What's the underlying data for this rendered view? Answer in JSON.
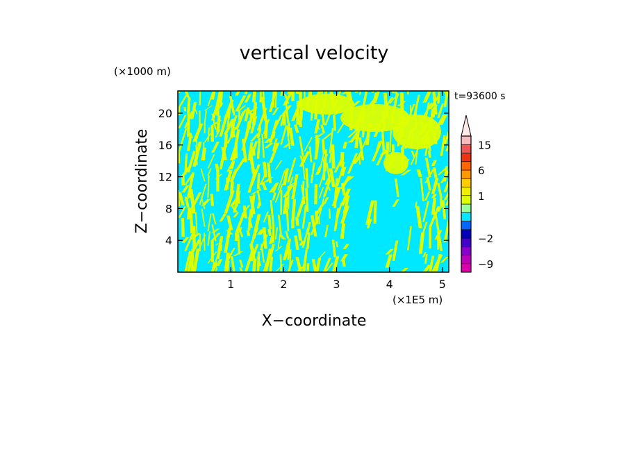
{
  "chart_data": {
    "type": "heatmap",
    "title": "vertical velocity",
    "xlabel": "X−coordinate",
    "ylabel": "Z−coordinate",
    "x_unit": "(×1E5 m)",
    "y_unit": "(×1000 m)",
    "time_label": "t=93600 s",
    "xlim": [
      0,
      5.12
    ],
    "ylim": [
      0,
      22.8
    ],
    "x_ticks": [
      1,
      2,
      3,
      4,
      5
    ],
    "y_ticks": [
      4,
      8,
      12,
      16,
      20
    ],
    "x_tick_labels": [
      "1",
      "2",
      "3",
      "4",
      "5"
    ],
    "y_tick_labels": [
      "4",
      "8",
      "12",
      "16",
      "20"
    ],
    "field_colors": {
      "positive": "#ddff00",
      "negative": "#00e8ff"
    },
    "colorbar": {
      "levels": [
        -12,
        -9,
        -6,
        -4,
        -2,
        -1,
        -0.5,
        0,
        0.5,
        1,
        2,
        4,
        6,
        9,
        12,
        15,
        20
      ],
      "colors": [
        "#dd00aa",
        "#bb00bb",
        "#8800cc",
        "#4400cc",
        "#0000bb",
        "#0066ff",
        "#00e8ff",
        "#99ff99",
        "#ddff00",
        "#eeee00",
        "#ffcc00",
        "#ff9900",
        "#ff6600",
        "#ee3311",
        "#ee5555",
        "#f8bbbb"
      ],
      "extend": "max",
      "tick_values": [
        -9,
        -2,
        1,
        6,
        15
      ],
      "tick_labels": [
        "−9",
        "−2",
        "1",
        "6",
        "15"
      ]
    }
  }
}
